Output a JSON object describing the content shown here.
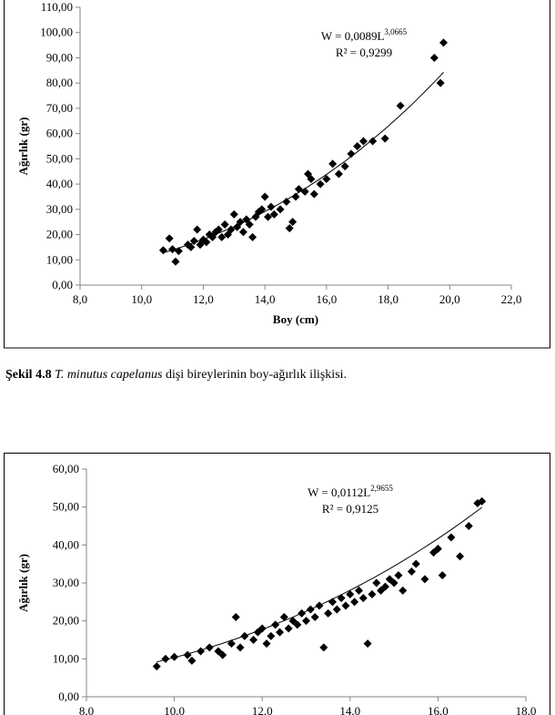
{
  "chart_data": [
    {
      "type": "scatter",
      "y_label": "Ağırlık (gr)",
      "x_label": "Boy (cm)",
      "color": "#000000",
      "xlim": [
        8,
        22
      ],
      "xticks": [
        {
          "value": 8,
          "label": "8,0"
        },
        {
          "value": 10,
          "label": "10,0"
        },
        {
          "value": 12,
          "label": "12,0"
        },
        {
          "value": 14,
          "label": "14,0"
        },
        {
          "value": 16,
          "label": "16,0"
        },
        {
          "value": 18,
          "label": "18,0"
        },
        {
          "value": 20,
          "label": "20,0"
        },
        {
          "value": 22,
          "label": "22,0"
        }
      ],
      "ylim": [
        0,
        110
      ],
      "yticks": [
        {
          "value": 0,
          "label": "0,00"
        },
        {
          "value": 10,
          "label": "10,00"
        },
        {
          "value": 20,
          "label": "20,00"
        },
        {
          "value": 30,
          "label": "30,00"
        },
        {
          "value": 40,
          "label": "40,00"
        },
        {
          "value": 50,
          "label": "50,00"
        },
        {
          "value": 60,
          "label": "60,00"
        },
        {
          "value": 70,
          "label": "70,00"
        },
        {
          "value": 80,
          "label": "80,00"
        },
        {
          "value": 90,
          "label": "90,00"
        },
        {
          "value": 100,
          "label": "100,00"
        },
        {
          "value": 110,
          "label": "110,00"
        }
      ],
      "x": [
        10.7,
        10.9,
        11.0,
        11.1,
        11.2,
        11.5,
        11.6,
        11.7,
        11.8,
        11.9,
        12.0,
        12.1,
        12.2,
        12.3,
        12.4,
        12.5,
        12.6,
        12.7,
        12.8,
        12.9,
        13.0,
        13.1,
        13.2,
        13.3,
        13.4,
        13.5,
        13.6,
        13.7,
        13.8,
        13.9,
        14.0,
        14.1,
        14.2,
        14.3,
        14.5,
        14.7,
        14.8,
        14.9,
        15.0,
        15.1,
        15.3,
        15.4,
        15.5,
        15.6,
        15.8,
        16.0,
        16.2,
        16.4,
        16.6,
        16.8,
        17.0,
        17.2,
        17.5,
        17.9,
        18.4,
        19.5,
        19.7,
        19.8
      ],
      "values": [
        13.8,
        18.5,
        14.2,
        9.3,
        13.5,
        16,
        15,
        17.5,
        22,
        16,
        18,
        17,
        20,
        19,
        21,
        22,
        19,
        24,
        20,
        22,
        28,
        23,
        25,
        21,
        26,
        24,
        19,
        27,
        29,
        30,
        35,
        27,
        31,
        28,
        30,
        33,
        22.5,
        25,
        35,
        38,
        37,
        44,
        42,
        36,
        40,
        42,
        48,
        44,
        47,
        52,
        55,
        57,
        57,
        58,
        71,
        90,
        80,
        96
      ],
      "trendline": {
        "a": 0.0089,
        "b": 3.0665,
        "label": "W = 0,0089L",
        "exponent": "3,0665",
        "r2": "R² = 0,9299"
      }
    },
    {
      "type": "scatter",
      "y_label": "Ağırlık (gr)",
      "color": "#000000",
      "xlim": [
        8,
        18
      ],
      "xticks": [
        {
          "value": 8,
          "label": "8,0"
        },
        {
          "value": 10,
          "label": "10,0"
        },
        {
          "value": 12,
          "label": "12,0"
        },
        {
          "value": 14,
          "label": "14,0"
        },
        {
          "value": 16,
          "label": "16,0"
        },
        {
          "value": 18,
          "label": "18,0"
        }
      ],
      "ylim": [
        0,
        60
      ],
      "yticks": [
        {
          "value": 0,
          "label": "0,00"
        },
        {
          "value": 10,
          "label": "10,00"
        },
        {
          "value": 20,
          "label": "20,00"
        },
        {
          "value": 30,
          "label": "30,00"
        },
        {
          "value": 40,
          "label": "40,00"
        },
        {
          "value": 50,
          "label": "50,00"
        },
        {
          "value": 60,
          "label": "60,00"
        }
      ],
      "x": [
        9.6,
        9.8,
        10.0,
        10.3,
        10.4,
        10.6,
        10.8,
        11.0,
        11.1,
        11.3,
        11.4,
        11.5,
        11.6,
        11.8,
        11.9,
        12.0,
        12.1,
        12.2,
        12.3,
        12.4,
        12.5,
        12.6,
        12.7,
        12.8,
        12.9,
        13.0,
        13.1,
        13.2,
        13.3,
        13.4,
        13.5,
        13.6,
        13.7,
        13.8,
        13.9,
        14.0,
        14.1,
        14.2,
        14.3,
        14.4,
        14.5,
        14.6,
        14.7,
        14.8,
        14.9,
        15.0,
        15.1,
        15.2,
        15.4,
        15.5,
        15.7,
        15.9,
        16.0,
        16.1,
        16.3,
        16.5,
        16.7,
        16.9,
        17.0
      ],
      "values": [
        8,
        10,
        10.5,
        11,
        9.5,
        12,
        13,
        12,
        11,
        14,
        21,
        13,
        16,
        15,
        17,
        18,
        14,
        16,
        19,
        17,
        21,
        18,
        20,
        19,
        22,
        20,
        23,
        21,
        24,
        13,
        22,
        25,
        23,
        26,
        24,
        27,
        25,
        28,
        26,
        14,
        27,
        30,
        28,
        29,
        31,
        30,
        32,
        28,
        33,
        35,
        31,
        38,
        39,
        32,
        42,
        37,
        45,
        51,
        51.5
      ],
      "trendline": {
        "a": 0.0112,
        "b": 2.9655,
        "label": "W = 0,0112L",
        "exponent": "2,9655",
        "r2": "R² = 0,9125"
      }
    }
  ],
  "caption": {
    "number": "Şekil 4.8",
    "species": "T. minutus capelanus",
    "text": "dişi bireylerinin boy-ağırlık ilişkisi."
  }
}
